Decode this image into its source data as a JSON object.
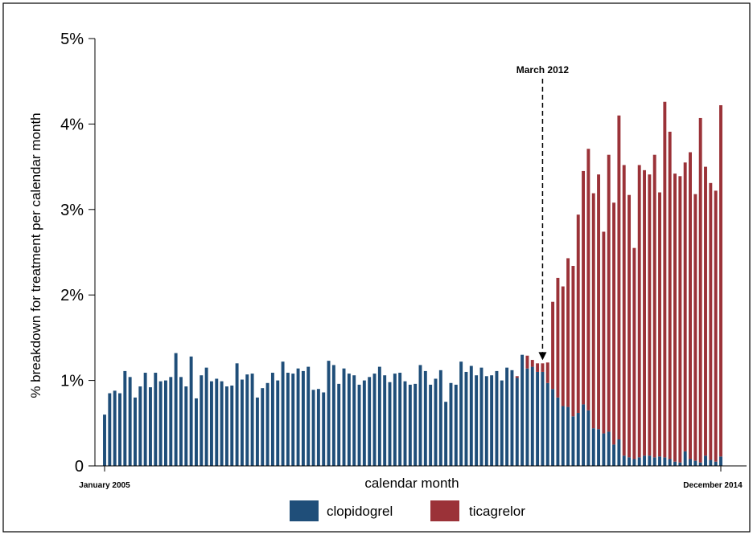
{
  "chart_data": {
    "type": "bar",
    "stacked": true,
    "ylabel": "% breakdown for treatment per calendar month",
    "xlabel": "calendar month",
    "ylim": [
      0,
      5
    ],
    "yticks": [
      {
        "value": 0,
        "label": "0"
      },
      {
        "value": 1,
        "label": "1%"
      },
      {
        "value": 2,
        "label": "2%"
      },
      {
        "value": 3,
        "label": "3%"
      },
      {
        "value": 4,
        "label": "4%"
      },
      {
        "value": 5,
        "label": "5%"
      }
    ],
    "x_start_label": "January 2005",
    "x_end_label": "December 2014",
    "annotation": {
      "label": "March 2012",
      "month_index": 86
    },
    "legend_position": "bottom",
    "colors": {
      "clopidogrel": "#1f4e79",
      "ticagrelor": "#9b3238"
    },
    "series": [
      {
        "name": "clopidogrel",
        "values": [
          0.6,
          0.85,
          0.88,
          0.85,
          1.11,
          1.04,
          0.8,
          0.93,
          1.09,
          0.92,
          1.09,
          0.99,
          1.0,
          1.04,
          1.32,
          1.04,
          0.93,
          1.28,
          0.79,
          1.06,
          1.15,
          0.99,
          1.02,
          0.99,
          0.93,
          0.94,
          1.2,
          1.01,
          1.07,
          1.08,
          0.8,
          0.91,
          0.97,
          1.09,
          1.0,
          1.22,
          1.09,
          1.08,
          1.14,
          1.11,
          1.16,
          0.89,
          0.9,
          0.86,
          1.23,
          1.18,
          0.96,
          1.14,
          1.08,
          1.06,
          0.95,
          1.0,
          1.04,
          1.08,
          1.16,
          1.06,
          0.98,
          1.08,
          1.09,
          0.99,
          0.95,
          0.96,
          1.18,
          1.11,
          0.95,
          1.02,
          1.12,
          0.75,
          0.97,
          0.95,
          1.22,
          1.1,
          1.17,
          1.06,
          1.15,
          1.05,
          1.06,
          1.11,
          1.0,
          1.15,
          1.12,
          1.03,
          1.3,
          1.14,
          1.16,
          1.1,
          1.1,
          0.97,
          0.9,
          0.8,
          0.7,
          0.69,
          0.58,
          0.62,
          0.72,
          0.65,
          0.44,
          0.43,
          0.38,
          0.4,
          0.25,
          0.31,
          0.12,
          0.1,
          0.08,
          0.1,
          0.12,
          0.12,
          0.1,
          0.11,
          0.1,
          0.08,
          0.05,
          0.04,
          0.17,
          0.08,
          0.06,
          0.04,
          0.12,
          0.07,
          0.05,
          0.11
        ]
      },
      {
        "name": "ticagrelor",
        "values": [
          0,
          0,
          0,
          0,
          0,
          0,
          0,
          0,
          0,
          0,
          0,
          0,
          0,
          0,
          0,
          0,
          0,
          0,
          0,
          0,
          0,
          0,
          0,
          0,
          0,
          0,
          0,
          0,
          0,
          0,
          0,
          0,
          0,
          0,
          0,
          0,
          0,
          0,
          0,
          0,
          0,
          0,
          0,
          0,
          0,
          0,
          0,
          0,
          0,
          0,
          0,
          0,
          0,
          0,
          0,
          0,
          0,
          0,
          0,
          0,
          0,
          0,
          0,
          0,
          0,
          0,
          0,
          0,
          0,
          0,
          0,
          0,
          0,
          0,
          0,
          0,
          0,
          0,
          0,
          0,
          0,
          0.02,
          0,
          0.15,
          0.08,
          0.1,
          0.1,
          0.24,
          1.02,
          1.4,
          1.4,
          1.74,
          1.76,
          2.32,
          2.73,
          3.06,
          2.75,
          2.98,
          2.36,
          3.24,
          2.83,
          3.79,
          3.4,
          3.07,
          2.47,
          3.42,
          3.34,
          3.29,
          3.54,
          3.09,
          4.16,
          3.83,
          3.37,
          3.35,
          3.38,
          3.59,
          3.12,
          4.03,
          3.38,
          3.24,
          3.17,
          4.11
        ]
      }
    ]
  }
}
